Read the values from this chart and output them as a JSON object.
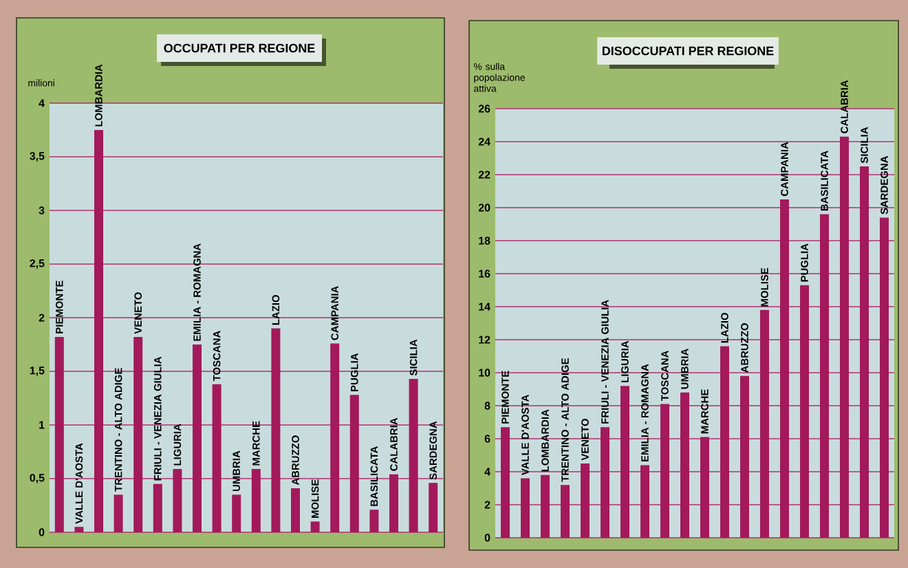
{
  "chart_data": [
    {
      "type": "bar",
      "title": "OCCUPATI PER REGIONE",
      "ylabel": "milioni",
      "categories": [
        "PIEMONTE",
        "VALLE D'AOSTA",
        "LOMBARDIA",
        "TRENTINO - ALTO ADIGE",
        "VENETO",
        "FRIULI - VENEZIA GIULIA",
        "LIGURIA",
        "EMILIA - ROMAGNA",
        "TOSCANA",
        "UMBRIA",
        "MARCHE",
        "LAZIO",
        "ABRUZZO",
        "MOLISE",
        "CAMPANIA",
        "PUGLIA",
        "BASILICATA",
        "CALABRIA",
        "SICILIA",
        "SARDEGNA"
      ],
      "values": [
        1.82,
        0.05,
        3.75,
        0.35,
        1.82,
        0.45,
        0.59,
        1.75,
        1.38,
        0.35,
        0.59,
        1.9,
        0.41,
        0.1,
        1.76,
        1.28,
        0.21,
        0.54,
        1.43,
        0.46
      ],
      "color": "#a3195b",
      "ylim": [
        0,
        4
      ],
      "yticks": [
        0,
        {
          "value": 0.5,
          "label": "0,5"
        },
        1,
        {
          "value": 1.5,
          "label": "1,5"
        },
        2,
        {
          "value": 2.5,
          "label": "2,5"
        },
        3,
        {
          "value": 3.5,
          "label": "3,5"
        },
        4
      ],
      "grid": "y"
    },
    {
      "type": "bar",
      "title": "DISOCCUPATI PER REGIONE",
      "ylabel": "% sulla popolazione attiva",
      "categories": [
        "PIEMONTE",
        "VALLE D'AOSTA",
        "LOMBARDIA",
        "TRENTINO - ALTO ADIGE",
        "VENETO",
        "FRIULI - VENEZIA GIULIA",
        "LIGURIA",
        "EMILIA - ROMAGNA",
        "TOSCANA",
        "UMBRIA",
        "MARCHE",
        "LAZIO",
        "ABRUZZO",
        "MOLISE",
        "CAMPANIA",
        "PUGLIA",
        "BASILICATA",
        "CALABRIA",
        "SICILIA",
        "SARDEGNA"
      ],
      "values": [
        6.7,
        3.6,
        3.8,
        3.2,
        4.5,
        6.7,
        9.2,
        4.4,
        8.1,
        8.8,
        6.1,
        11.6,
        9.8,
        13.8,
        20.5,
        15.3,
        19.6,
        24.3,
        22.5,
        19.4
      ],
      "color": "#a3195b",
      "ylim": [
        0,
        26
      ],
      "yticks": [
        0,
        2,
        4,
        6,
        8,
        10,
        12,
        14,
        16,
        18,
        20,
        22,
        24,
        26
      ],
      "grid": "y"
    }
  ]
}
